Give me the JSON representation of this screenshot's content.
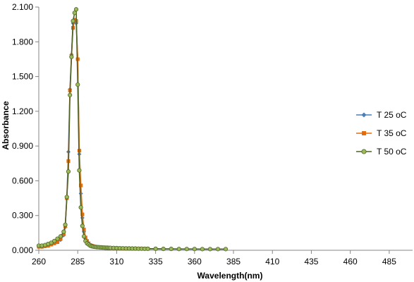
{
  "chart_data": {
    "type": "line",
    "xlabel": "Wavelength(nm)",
    "ylabel": "Absorbance",
    "xlim": [
      260,
      500
    ],
    "ylim": [
      0,
      2.1
    ],
    "x_ticks": [
      "260",
      "285",
      "310",
      "335",
      "360",
      "385",
      "410",
      "435",
      "460",
      "485"
    ],
    "x_tick_values": [
      260,
      285,
      310,
      335,
      360,
      385,
      410,
      435,
      460,
      485
    ],
    "y_ticks": [
      "0.000",
      "0.300",
      "0.600",
      "0.900",
      "1.200",
      "1.500",
      "1.800",
      "2.100"
    ],
    "y_tick_values": [
      0,
      0.3,
      0.6,
      0.9,
      1.2,
      1.5,
      1.8,
      2.1
    ],
    "grid": false,
    "legend_position": "right",
    "series": [
      {
        "name": "T 25 oC",
        "color": "#4A7EBB",
        "marker": "diamond",
        "x": [
          260,
          262,
          264,
          266,
          268,
          270,
          272,
          274,
          276,
          277,
          278,
          279,
          280,
          281,
          282,
          283,
          284,
          285,
          286,
          287,
          288,
          289,
          290,
          291,
          292,
          293,
          294,
          295,
          296,
          297,
          298,
          299,
          300,
          301,
          302,
          303,
          304,
          305,
          306,
          308,
          310,
          312,
          314,
          316,
          318,
          320,
          322,
          324,
          326,
          328,
          330,
          335,
          340,
          345,
          350,
          355,
          360,
          365,
          370,
          375,
          380
        ],
        "y": [
          0.03,
          0.03,
          0.035,
          0.04,
          0.05,
          0.06,
          0.07,
          0.09,
          0.13,
          0.2,
          0.45,
          0.85,
          1.39,
          1.69,
          1.96,
          1.99,
          1.96,
          1.65,
          0.83,
          0.49,
          0.28,
          0.16,
          0.1,
          0.07,
          0.05,
          0.04,
          0.035,
          0.03,
          0.028,
          0.026,
          0.025,
          0.024,
          0.023,
          0.022,
          0.021,
          0.021,
          0.02,
          0.02,
          0.019,
          0.018,
          0.017,
          0.016,
          0.015,
          0.015,
          0.014,
          0.014,
          0.013,
          0.013,
          0.013,
          0.012,
          0.012,
          0.012,
          0.011,
          0.011,
          0.01,
          0.01,
          0.01,
          0.01,
          0.01,
          0.01,
          0.01
        ]
      },
      {
        "name": "T 35 oC",
        "color": "#E46C0A",
        "marker": "square",
        "x": [
          260,
          262,
          264,
          266,
          268,
          270,
          272,
          274,
          276,
          277,
          278,
          279,
          280,
          281,
          282,
          283,
          284,
          285,
          286,
          287,
          288,
          289,
          290,
          291,
          292,
          293,
          294,
          295,
          296,
          297,
          298,
          299,
          300,
          301,
          302,
          303,
          304,
          305,
          306,
          308,
          310,
          312,
          314,
          316,
          318,
          320,
          322,
          324,
          326,
          328,
          330
        ],
        "y": [
          0.03,
          0.03,
          0.035,
          0.04,
          0.05,
          0.06,
          0.07,
          0.1,
          0.14,
          0.21,
          0.45,
          0.77,
          1.38,
          1.68,
          1.92,
          1.99,
          1.98,
          1.65,
          0.86,
          0.56,
          0.31,
          0.18,
          0.11,
          0.08,
          0.06,
          0.045,
          0.04,
          0.035,
          0.03,
          0.028,
          0.026,
          0.025,
          0.024,
          0.023,
          0.022,
          0.022,
          0.021,
          0.021,
          0.02,
          0.019,
          0.018,
          0.017,
          0.016,
          0.016,
          0.015,
          0.015,
          0.014,
          0.014,
          0.013,
          0.013,
          0.013
        ]
      },
      {
        "name": "T 50 oC",
        "color": "#4F6228",
        "marker": "circle",
        "x": [
          260,
          262,
          264,
          266,
          268,
          270,
          272,
          274,
          276,
          277,
          278,
          279,
          280,
          281,
          282,
          283,
          284,
          285,
          286,
          287,
          288,
          289,
          290,
          291,
          292,
          293,
          294,
          295,
          296,
          297,
          298,
          299,
          300,
          301,
          302,
          303,
          304,
          305,
          306,
          308,
          310,
          312,
          314,
          316,
          318,
          320,
          322,
          324,
          326,
          328,
          330,
          335,
          340,
          345,
          350,
          355,
          360,
          365,
          370,
          375,
          380
        ],
        "y": [
          0.04,
          0.04,
          0.045,
          0.055,
          0.065,
          0.08,
          0.1,
          0.12,
          0.16,
          0.22,
          0.46,
          0.68,
          1.34,
          1.67,
          1.98,
          2.05,
          2.08,
          1.43,
          0.69,
          0.37,
          0.21,
          0.12,
          0.08,
          0.06,
          0.05,
          0.04,
          0.035,
          0.032,
          0.03,
          0.028,
          0.027,
          0.026,
          0.025,
          0.024,
          0.023,
          0.022,
          0.022,
          0.021,
          0.021,
          0.02,
          0.019,
          0.018,
          0.017,
          0.016,
          0.016,
          0.015,
          0.015,
          0.014,
          0.014,
          0.013,
          0.013,
          0.013,
          0.012,
          0.012,
          0.011,
          0.011,
          0.011,
          0.01,
          0.01,
          0.01,
          0.01
        ]
      }
    ]
  }
}
